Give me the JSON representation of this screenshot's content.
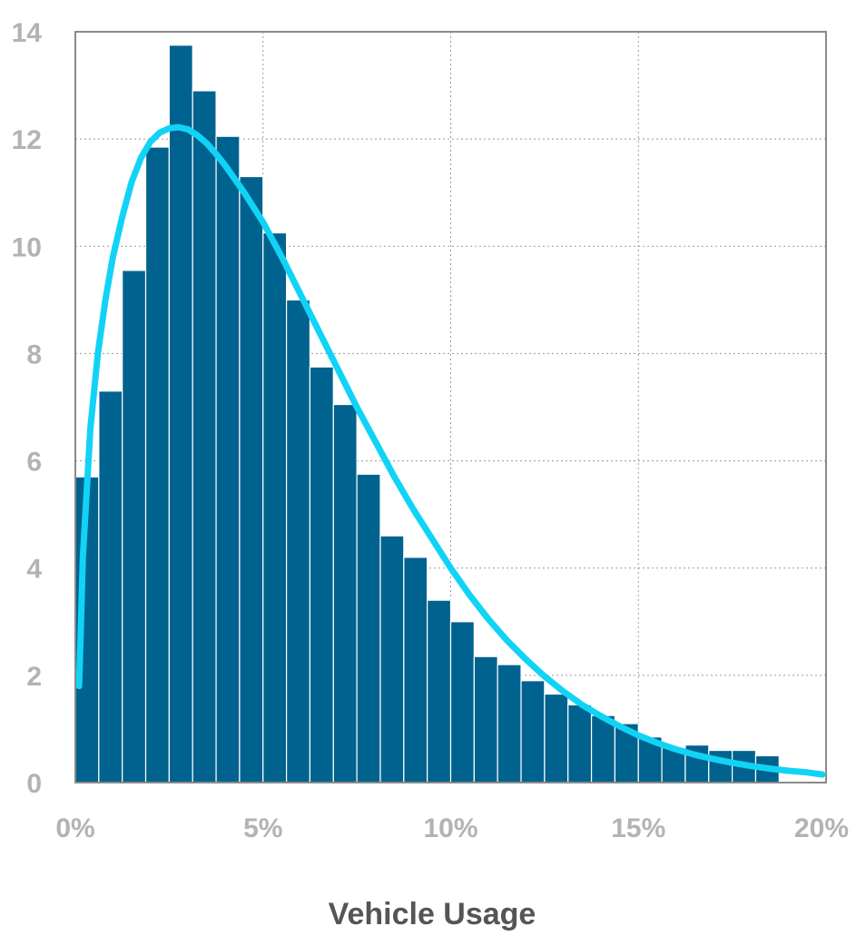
{
  "chart_data": {
    "type": "bar",
    "title": "",
    "xlabel": "Vehicle Usage",
    "ylabel": "",
    "xlim": [
      0,
      20
    ],
    "ylim": [
      0,
      14
    ],
    "x_ticks": [
      "0%",
      "5%",
      "10%",
      "15%",
      "20%"
    ],
    "y_ticks": [
      "0",
      "2",
      "4",
      "6",
      "8",
      "10",
      "12",
      "14"
    ],
    "grid": true,
    "legend": "none",
    "colors": {
      "bars": "#00628f",
      "curve": "#11d3f6",
      "grid": "#9a9a9a",
      "frame": "#8a8a8a",
      "ticks": "#b3b3b3"
    },
    "bin_width": 0.625,
    "bins": [
      {
        "x": 0.3125,
        "y": 5.7
      },
      {
        "x": 0.9375,
        "y": 7.3
      },
      {
        "x": 1.5625,
        "y": 9.55
      },
      {
        "x": 2.1875,
        "y": 11.85
      },
      {
        "x": 2.8125,
        "y": 13.75
      },
      {
        "x": 3.4375,
        "y": 12.9
      },
      {
        "x": 4.0625,
        "y": 12.05
      },
      {
        "x": 4.6875,
        "y": 11.3
      },
      {
        "x": 5.3125,
        "y": 10.25
      },
      {
        "x": 5.9375,
        "y": 9.0
      },
      {
        "x": 6.5625,
        "y": 7.75
      },
      {
        "x": 7.1875,
        "y": 7.05
      },
      {
        "x": 7.8125,
        "y": 5.75
      },
      {
        "x": 8.4375,
        "y": 4.6
      },
      {
        "x": 9.0625,
        "y": 4.2
      },
      {
        "x": 9.6875,
        "y": 3.4
      },
      {
        "x": 10.3125,
        "y": 3.0
      },
      {
        "x": 10.9375,
        "y": 2.35
      },
      {
        "x": 11.5625,
        "y": 2.2
      },
      {
        "x": 12.1875,
        "y": 1.9
      },
      {
        "x": 12.8125,
        "y": 1.65
      },
      {
        "x": 13.4375,
        "y": 1.45
      },
      {
        "x": 14.0625,
        "y": 1.25
      },
      {
        "x": 14.6875,
        "y": 1.1
      },
      {
        "x": 15.3125,
        "y": 0.85
      },
      {
        "x": 15.9375,
        "y": 0.65
      },
      {
        "x": 16.5625,
        "y": 0.7
      },
      {
        "x": 17.1875,
        "y": 0.6
      },
      {
        "x": 17.8125,
        "y": 0.6
      },
      {
        "x": 18.4375,
        "y": 0.5
      }
    ],
    "fit_curve": {
      "type": "line",
      "x": [
        0.1,
        0.2,
        0.4,
        0.6,
        0.8,
        1.0,
        1.25,
        1.5,
        1.75,
        2.0,
        2.25,
        2.5,
        2.75,
        3.0,
        3.25,
        3.5,
        3.75,
        4.0,
        4.5,
        5.0,
        5.5,
        6.0,
        6.5,
        7.0,
        7.5,
        8.0,
        8.5,
        9.0,
        9.5,
        10.0,
        10.5,
        11.0,
        11.5,
        12.0,
        12.5,
        13.0,
        13.5,
        14.0,
        14.5,
        15.0,
        15.5,
        16.0,
        16.5,
        17.0,
        17.5,
        18.0,
        18.5,
        19.0,
        19.5,
        19.9
      ],
      "y": [
        1.8,
        4.2,
        6.6,
        8.0,
        9.0,
        9.8,
        10.55,
        11.2,
        11.65,
        11.95,
        12.12,
        12.2,
        12.22,
        12.18,
        12.07,
        11.92,
        11.72,
        11.5,
        11.0,
        10.45,
        9.8,
        9.1,
        8.4,
        7.7,
        7.0,
        6.35,
        5.7,
        5.1,
        4.55,
        4.0,
        3.5,
        3.05,
        2.65,
        2.3,
        1.98,
        1.7,
        1.45,
        1.24,
        1.05,
        0.88,
        0.74,
        0.62,
        0.52,
        0.44,
        0.37,
        0.31,
        0.26,
        0.22,
        0.19,
        0.15
      ]
    }
  }
}
